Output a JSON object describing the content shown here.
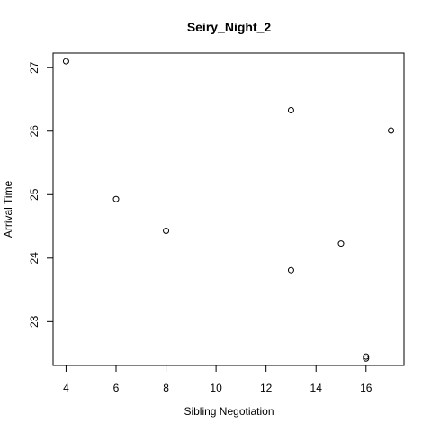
{
  "chart_data": {
    "type": "scatter",
    "title": "Seiry_Night_2",
    "xlabel": "Sibling Negotiation",
    "ylabel": "Arrival Time",
    "xlim": [
      3.48,
      17.52
    ],
    "ylim": [
      22.31,
      27.23
    ],
    "xticks": [
      4,
      6,
      8,
      10,
      12,
      14,
      16
    ],
    "yticks": [
      23,
      24,
      25,
      26,
      27
    ],
    "grid": false,
    "marker": "open-circle",
    "points": [
      {
        "x": 4,
        "y": 27.1
      },
      {
        "x": 6,
        "y": 24.93
      },
      {
        "x": 8,
        "y": 24.43
      },
      {
        "x": 13,
        "y": 26.33
      },
      {
        "x": 13,
        "y": 23.81
      },
      {
        "x": 15,
        "y": 24.23
      },
      {
        "x": 16,
        "y": 22.45
      },
      {
        "x": 16,
        "y": 22.42
      },
      {
        "x": 17,
        "y": 26.01
      }
    ]
  }
}
